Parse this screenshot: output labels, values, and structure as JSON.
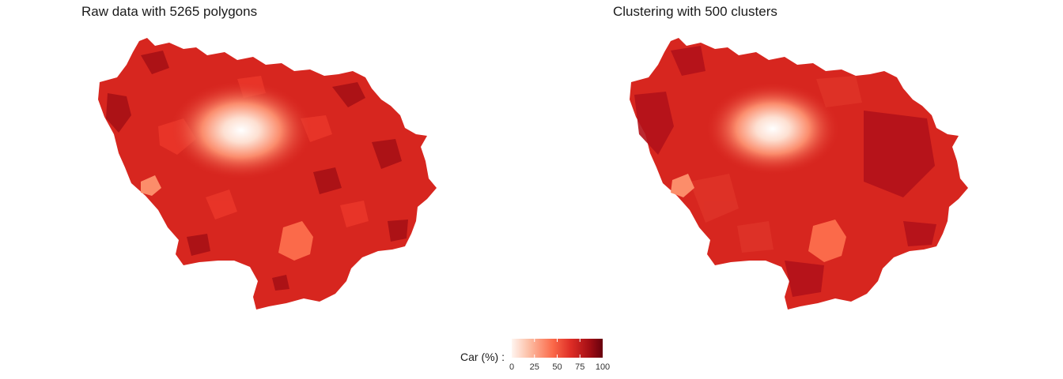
{
  "panels": [
    {
      "title": "Raw data with 5265 polygons"
    },
    {
      "title": "Clustering with 500 clusters"
    }
  ],
  "legend": {
    "title": "Car (%) :",
    "ticks": [
      "0",
      "25",
      "50",
      "75",
      "100"
    ],
    "colors": [
      "#fff5f0",
      "#fcbba1",
      "#fb6a4a",
      "#de2d26",
      "#a50f15",
      "#67000d"
    ]
  },
  "colors": {
    "map_base": "#d7261f",
    "map_dark": "#a50f15",
    "map_mid": "#ef3b2c",
    "center_light": "#fff1ea",
    "south_patch": "#fb6a4a",
    "west_patch": "#fc8d6a"
  }
}
